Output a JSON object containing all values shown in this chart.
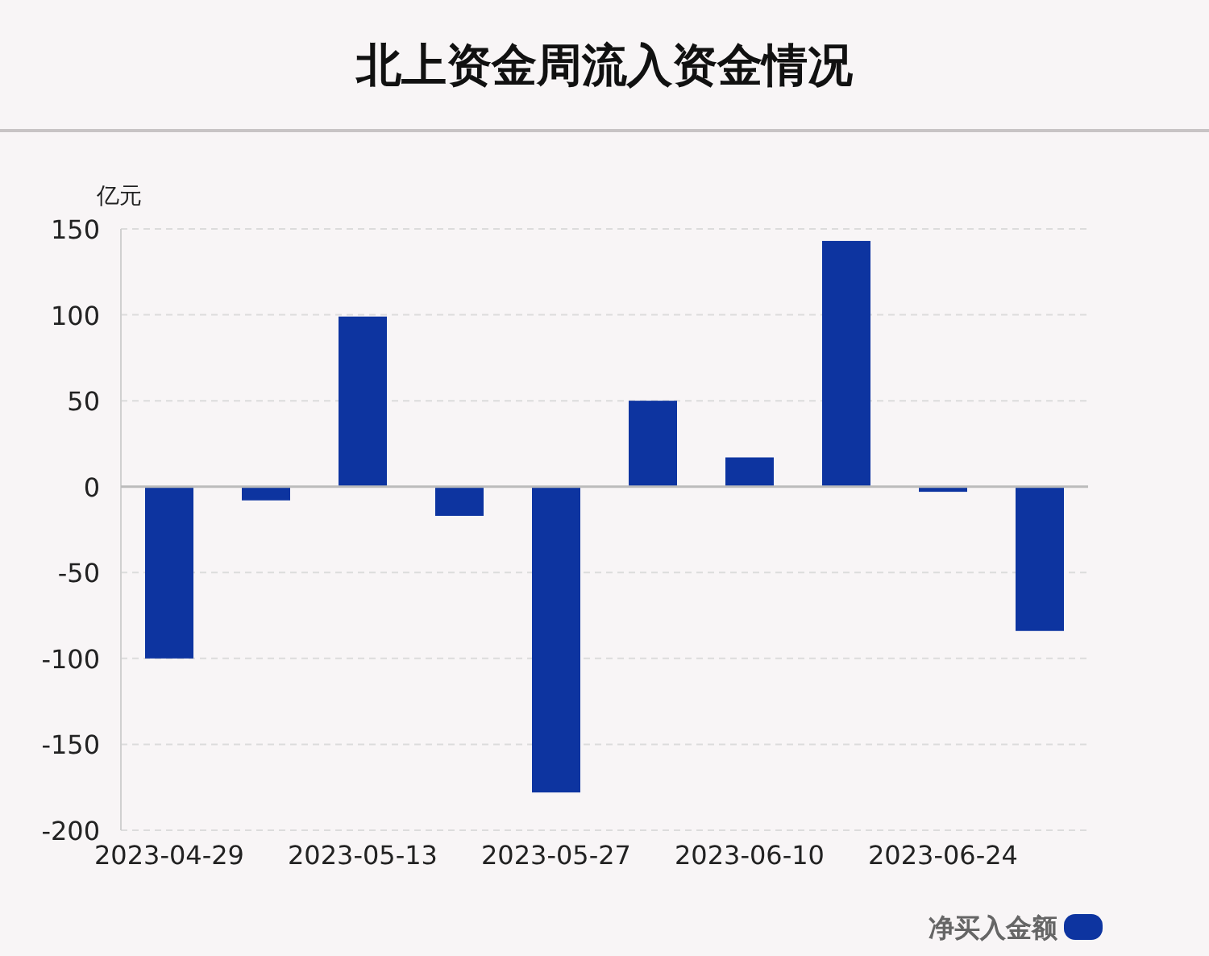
{
  "chart_data": {
    "type": "bar",
    "title": "北上资金周流入资金情况",
    "ylabel": "亿元",
    "categories": [
      "2023-04-29",
      null,
      "2023-05-13",
      null,
      "2023-05-27",
      null,
      "2023-06-10",
      null,
      "2023-06-24",
      null
    ],
    "series": [
      {
        "name": "净买入金额",
        "color": "#0d34a0",
        "values": [
          -100,
          -8,
          99,
          -17,
          -178,
          50,
          17,
          143,
          -3,
          -84
        ]
      }
    ],
    "ylim": [
      -200,
      150
    ],
    "yticks": [
      -200,
      -150,
      -100,
      -50,
      0,
      50,
      100,
      150
    ],
    "grid": "y",
    "legend": "bottom right"
  }
}
